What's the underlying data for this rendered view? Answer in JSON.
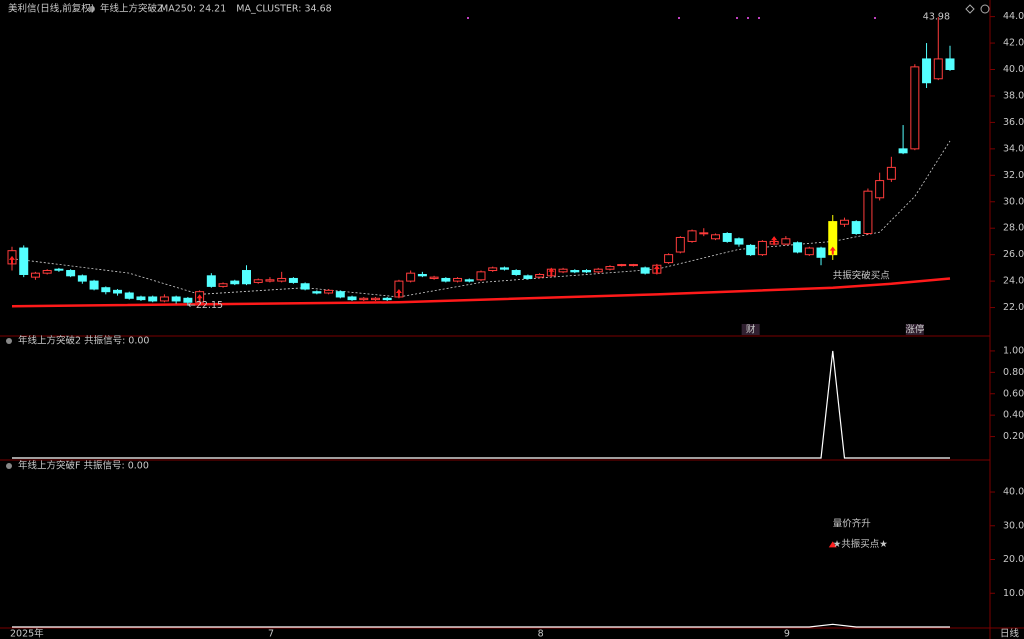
{
  "chart_data": [
    {
      "type": "candlestick",
      "title": "美利信(日线,前复权)",
      "indicator": "年线上方突破Z",
      "open": [
        25.3,
        26.5,
        24.3,
        24.6,
        24.9,
        24.8,
        24.4,
        24.0,
        23.5,
        23.3,
        23.1,
        22.8,
        22.8,
        22.5,
        22.8,
        22.7,
        22.4,
        24.4,
        23.6,
        24.0,
        24.8,
        23.9,
        24.0,
        24.0,
        24.2,
        23.8,
        23.2,
        23.1,
        23.2,
        22.8,
        22.6,
        22.6,
        22.7,
        22.8,
        24.0,
        24.5,
        24.2,
        24.2,
        24.0,
        24.1,
        24.1,
        24.8,
        25.0,
        24.8,
        24.4,
        24.3,
        24.4,
        24.7,
        24.8,
        24.8,
        24.7,
        24.9,
        25.2,
        25.2,
        25.0,
        24.6,
        25.4,
        26.2,
        27.0,
        27.6,
        27.2,
        27.6,
        27.2,
        26.7,
        26.0,
        26.8,
        26.8,
        26.9,
        26.0,
        26.5,
        26.0,
        28.3,
        28.5,
        27.6,
        30.3,
        31.7,
        34.0,
        34.0,
        40.8,
        39.3,
        40.8
      ],
      "high": [
        26.6,
        26.7,
        24.7,
        24.9,
        25.0,
        24.9,
        24.5,
        24.1,
        23.6,
        23.4,
        23.2,
        22.9,
        22.9,
        23.0,
        22.9,
        22.8,
        23.3,
        24.6,
        23.9,
        24.1,
        25.2,
        24.2,
        24.3,
        24.7,
        24.3,
        23.9,
        23.3,
        23.4,
        23.3,
        22.9,
        22.8,
        22.8,
        22.8,
        24.1,
        24.8,
        24.7,
        24.4,
        24.3,
        24.3,
        24.2,
        24.8,
        25.1,
        25.1,
        24.9,
        24.5,
        24.6,
        25.0,
        25.0,
        24.9,
        24.9,
        25.0,
        25.2,
        25.3,
        25.3,
        25.1,
        25.3,
        26.1,
        27.4,
        27.9,
        28.0,
        27.6,
        27.7,
        27.3,
        26.8,
        27.1,
        27.1,
        27.4,
        27.0,
        26.6,
        26.6,
        29.0,
        28.8,
        28.6,
        31.0,
        32.2,
        33.4,
        35.8,
        40.4,
        42.0,
        43.98,
        41.8
      ],
      "low": [
        24.8,
        24.3,
        24.1,
        24.5,
        24.7,
        24.3,
        23.8,
        23.3,
        23.0,
        22.9,
        22.6,
        22.5,
        22.4,
        22.4,
        22.3,
        22.15,
        22.3,
        23.5,
        23.5,
        23.7,
        23.7,
        23.8,
        23.9,
        23.9,
        23.8,
        23.3,
        23.0,
        23.0,
        22.7,
        22.5,
        22.5,
        22.5,
        22.5,
        22.7,
        23.9,
        24.3,
        24.1,
        23.9,
        23.9,
        23.9,
        24.0,
        24.7,
        24.8,
        24.4,
        24.1,
        24.2,
        24.3,
        24.6,
        24.6,
        24.6,
        24.6,
        24.8,
        25.1,
        25.1,
        24.5,
        24.5,
        25.3,
        26.1,
        26.9,
        27.4,
        27.1,
        26.9,
        26.6,
        25.9,
        25.9,
        26.7,
        26.7,
        26.1,
        25.9,
        25.2,
        25.6,
        28.1,
        27.5,
        27.5,
        30.1,
        31.5,
        33.6,
        33.9,
        38.6,
        39.2,
        39.9
      ],
      "close": [
        26.3,
        24.5,
        24.6,
        24.8,
        24.85,
        24.4,
        24.0,
        23.4,
        23.2,
        23.1,
        22.7,
        22.6,
        22.5,
        22.8,
        22.5,
        22.4,
        23.2,
        23.6,
        23.8,
        23.8,
        23.8,
        24.1,
        24.1,
        24.2,
        23.9,
        23.4,
        23.1,
        23.3,
        22.8,
        22.6,
        22.7,
        22.7,
        22.6,
        24.0,
        24.6,
        24.4,
        24.3,
        24.0,
        24.2,
        24.0,
        24.7,
        25.0,
        24.9,
        24.5,
        24.2,
        24.5,
        24.9,
        24.9,
        24.7,
        24.7,
        24.9,
        25.1,
        25.25,
        25.25,
        24.6,
        25.2,
        26.0,
        27.3,
        27.8,
        27.65,
        27.5,
        27.0,
        26.8,
        26.0,
        27.0,
        27.0,
        27.2,
        26.2,
        26.5,
        25.8,
        28.5,
        28.6,
        27.6,
        30.8,
        31.6,
        32.6,
        33.7,
        40.2,
        39.0,
        40.8,
        40.0
      ],
      "up_color": "#ff3c3c",
      "down_color": "#54ffff",
      "highlight": {
        "index": 70,
        "color": "#ffff00"
      },
      "series": [
        {
          "name": "MA250: 24.21",
          "color": "#ff1a1a",
          "dash": false,
          "x": [
            0,
            33,
            55,
            70,
            75,
            80
          ],
          "values": [
            22.1,
            22.4,
            23.0,
            23.5,
            23.8,
            24.2
          ]
        },
        {
          "name": "MA_CLUSTER: 34.68",
          "color": "#d0d0d0",
          "dash": true,
          "x": [
            0,
            10,
            16,
            25,
            33,
            40,
            55,
            62,
            70,
            74,
            77,
            80
          ],
          "values": [
            25.7,
            24.6,
            23.0,
            23.5,
            22.8,
            23.9,
            24.9,
            26.4,
            27.0,
            27.7,
            30.4,
            34.6
          ]
        }
      ],
      "buy_signals": [
        0,
        16,
        33,
        46,
        55,
        65,
        70
      ],
      "annotations": [
        {
          "text": "←22.15",
          "x": 15,
          "y": 22.15,
          "color": "#e0e0e0"
        },
        {
          "text": "43.98",
          "x": 80,
          "y": 43.98,
          "color": "#e0e0e0"
        },
        {
          "text": "共振突破买点",
          "x": 70,
          "y": 24.4,
          "color": "#ffffa0"
        }
      ],
      "badges": [
        {
          "text": "财",
          "x": 63,
          "color": "#5aa0ff"
        },
        {
          "text": "涨停",
          "x": 77,
          "color": "#ff6060"
        }
      ],
      "ylim": [
        20,
        44.5
      ],
      "yticks": [
        {
          "value": 22,
          "label": "22.00"
        },
        {
          "value": 24,
          "label": "24.00"
        },
        {
          "value": 26,
          "label": "26.00"
        },
        {
          "value": 28,
          "label": "28.00"
        },
        {
          "value": 30,
          "label": "30.00"
        },
        {
          "value": 32,
          "label": "32.00"
        },
        {
          "value": 34,
          "label": "34.00"
        },
        {
          "value": 36,
          "label": "36.00"
        },
        {
          "value": 38,
          "label": "38.00"
        },
        {
          "value": 40,
          "label": "40.00"
        },
        {
          "value": 42,
          "label": "42.00"
        },
        {
          "value": 44,
          "label": "44.00"
        }
      ]
    },
    {
      "type": "line",
      "title": "年线上方突破2  共振信号: 0.00",
      "color": "#ffffff",
      "x": [
        0,
        69,
        70,
        71,
        80
      ],
      "values": [
        0,
        0,
        1,
        0,
        0
      ],
      "ylim": [
        0,
        1.13
      ],
      "yticks": [
        {
          "value": 0.2,
          "label": "0.20"
        },
        {
          "value": 0.4,
          "label": "0.40"
        },
        {
          "value": 0.6,
          "label": "0.60"
        },
        {
          "value": 0.8,
          "label": "0.80"
        },
        {
          "value": 1,
          "label": "1.00"
        }
      ]
    },
    {
      "type": "line",
      "title": "年线上方突破F  共振信号: 0.00",
      "color": "#ffffff",
      "x": [
        0,
        68,
        70,
        72,
        80
      ],
      "values": [
        0,
        0,
        0.8,
        0,
        0
      ],
      "annotations": [
        {
          "text": "量价齐升",
          "x": 70,
          "y": 30.5,
          "color": "#a8e0ff"
        },
        {
          "text": "★共振买点★",
          "x": 70,
          "y": 24.5,
          "color": "#ffff60"
        }
      ],
      "ylim": [
        0,
        48.9
      ],
      "yticks": [
        {
          "value": 10,
          "label": "10.00"
        },
        {
          "value": 20,
          "label": "20.00"
        },
        {
          "value": 30,
          "label": "30.00"
        },
        {
          "value": 40,
          "label": "40.00"
        }
      ],
      "xticks": [
        {
          "value": 0,
          "label": "2025年"
        },
        {
          "value": 22,
          "label": "7"
        },
        {
          "value": 45,
          "label": "8"
        },
        {
          "value": 66,
          "label": "9"
        }
      ],
      "period_label": "日线"
    }
  ]
}
